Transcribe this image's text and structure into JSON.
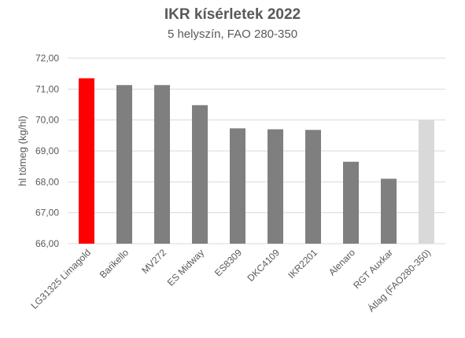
{
  "chart_data": {
    "type": "bar",
    "title": "IKR kísérletek 2022",
    "subtitle": "5 helyszín, FAO 280-350",
    "ylabel": "hl tömeg (kg/hl)",
    "xlabel": "",
    "ylim": [
      66,
      72
    ],
    "yticks": [
      "66,00",
      "67,00",
      "68,00",
      "69,00",
      "70,00",
      "71,00",
      "72,00"
    ],
    "grid": true,
    "categories": [
      "LG31325 Limagold",
      "Barikello",
      "MV272",
      "ES Midway",
      "ES8309",
      "DKC4109",
      "IKR2201",
      "Alenaro",
      "RGT Auxkar",
      "Átlag (FAO280-350)"
    ],
    "values": [
      71.35,
      71.13,
      71.13,
      70.48,
      69.73,
      69.7,
      69.68,
      68.65,
      68.1,
      70.0
    ],
    "colors": [
      "#ff0000",
      "#7f7f7f",
      "#7f7f7f",
      "#7f7f7f",
      "#7f7f7f",
      "#7f7f7f",
      "#7f7f7f",
      "#7f7f7f",
      "#7f7f7f",
      "#d9d9d9"
    ]
  }
}
